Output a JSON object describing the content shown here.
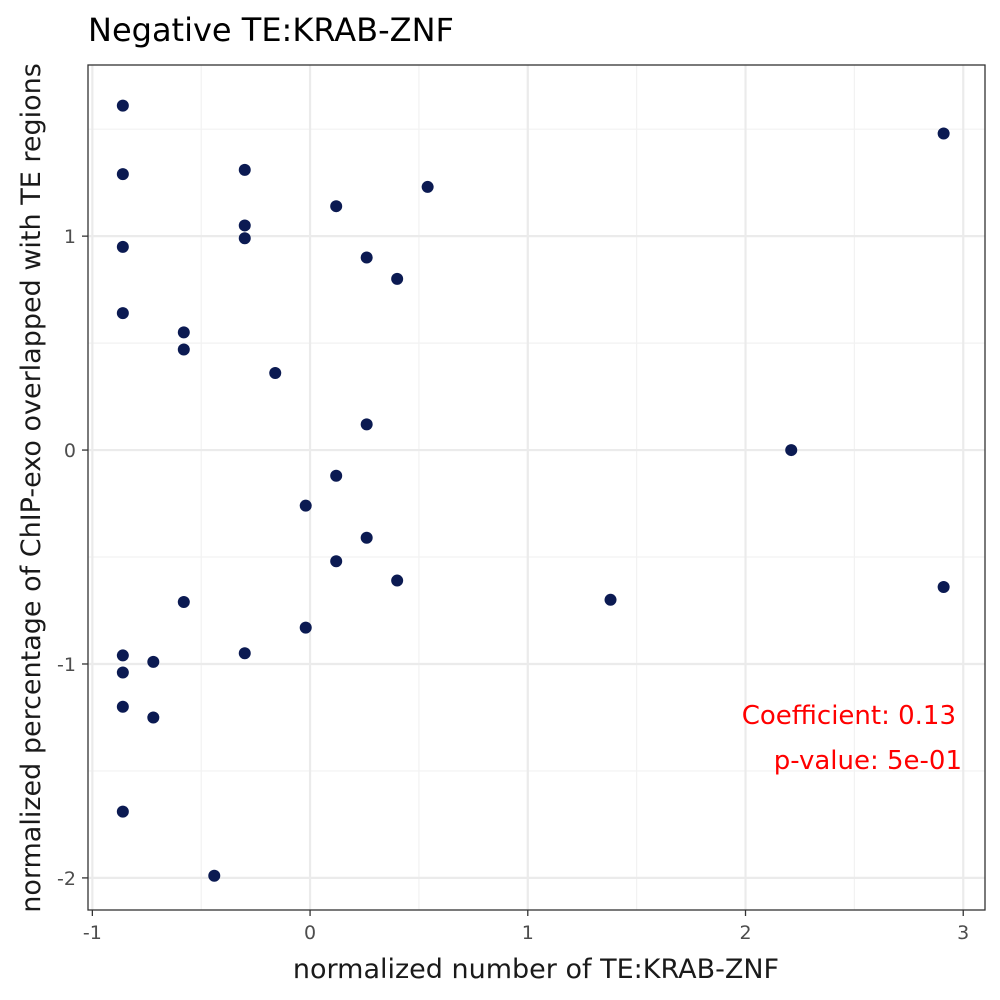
{
  "chart_data": {
    "type": "scatter",
    "title": "Negative TE:KRAB-ZNF",
    "xlabel": "normalized number of TE:KRAB-ZNF",
    "ylabel": "normalized percentage of ChIP-exo overlapped with TE regions",
    "xlim": [
      -1.02,
      3.1
    ],
    "ylim": [
      -2.15,
      1.8
    ],
    "x_ticks": [
      -1,
      0,
      1,
      2,
      3
    ],
    "y_ticks": [
      -2,
      -1,
      0,
      1
    ],
    "x_tick_labels": [
      "-1",
      "0",
      "1",
      "2",
      "3"
    ],
    "y_tick_labels": [
      "-2",
      "-1",
      "0",
      "1"
    ],
    "grid": true,
    "point_color": "#0b1a52",
    "annotation_color": "#ff0000",
    "annotations": [
      "Coefficient: 0.13",
      "p-value: 5e-01"
    ],
    "points": [
      {
        "x": -0.86,
        "y": 1.61
      },
      {
        "x": -0.86,
        "y": 1.29
      },
      {
        "x": -0.86,
        "y": 0.95
      },
      {
        "x": -0.86,
        "y": 0.64
      },
      {
        "x": -0.86,
        "y": -0.96
      },
      {
        "x": -0.86,
        "y": -1.04
      },
      {
        "x": -0.86,
        "y": -1.2
      },
      {
        "x": -0.86,
        "y": -1.69
      },
      {
        "x": -0.72,
        "y": -0.99
      },
      {
        "x": -0.72,
        "y": -1.25
      },
      {
        "x": -0.58,
        "y": 0.55
      },
      {
        "x": -0.58,
        "y": 0.47
      },
      {
        "x": -0.58,
        "y": -0.71
      },
      {
        "x": -0.44,
        "y": -1.99
      },
      {
        "x": -0.3,
        "y": 1.31
      },
      {
        "x": -0.3,
        "y": 1.05
      },
      {
        "x": -0.3,
        "y": 0.99
      },
      {
        "x": -0.3,
        "y": -0.95
      },
      {
        "x": -0.16,
        "y": 0.36
      },
      {
        "x": -0.02,
        "y": -0.26
      },
      {
        "x": -0.02,
        "y": -0.83
      },
      {
        "x": 0.12,
        "y": 1.14
      },
      {
        "x": 0.12,
        "y": -0.12
      },
      {
        "x": 0.12,
        "y": -0.52
      },
      {
        "x": 0.26,
        "y": 0.9
      },
      {
        "x": 0.26,
        "y": 0.12
      },
      {
        "x": 0.26,
        "y": -0.41
      },
      {
        "x": 0.4,
        "y": 0.8
      },
      {
        "x": 0.4,
        "y": -0.61
      },
      {
        "x": 0.54,
        "y": 1.23
      },
      {
        "x": 1.38,
        "y": -0.7
      },
      {
        "x": 2.21,
        "y": 0.0
      },
      {
        "x": 2.91,
        "y": 1.48
      },
      {
        "x": 2.91,
        "y": -0.64
      }
    ]
  }
}
